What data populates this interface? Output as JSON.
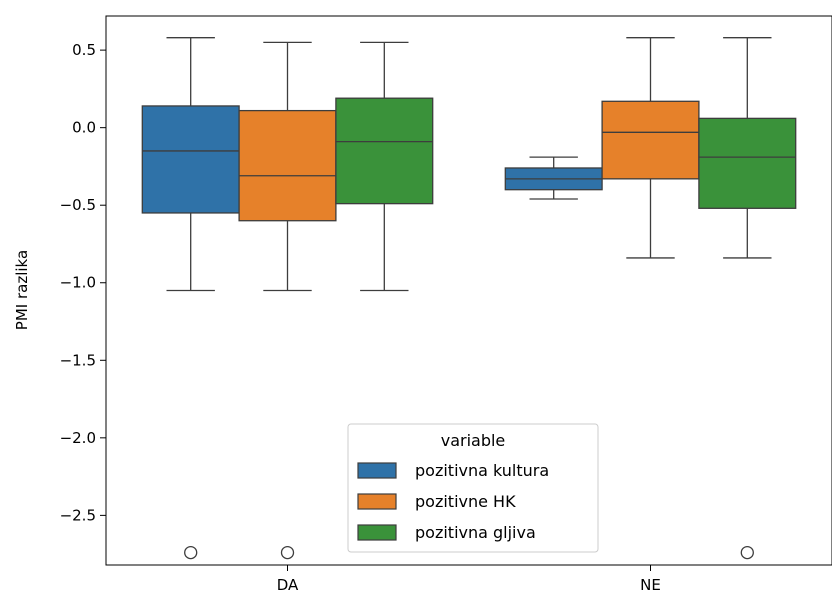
{
  "chart_data": {
    "type": "box",
    "xlabel": "",
    "ylabel": "PMI razlika",
    "categories": [
      "DA",
      "NE"
    ],
    "ylim": [
      -2.82,
      0.72
    ],
    "yticks": [
      0.5,
      0.0,
      -0.5,
      -1.0,
      -1.5,
      -2.0,
      -2.5
    ],
    "ytick_labels": [
      "0.5",
      "0.0",
      "−0.5",
      "−1.0",
      "−1.5",
      "−2.0",
      "−2.5"
    ],
    "grid": false,
    "legend": {
      "title": "variable",
      "position": "bottom-center"
    },
    "series": [
      {
        "name": "pozitivna kultura",
        "color": "#2f72a8",
        "boxes": [
          {
            "category": "DA",
            "whisker_low": -1.05,
            "q1": -0.55,
            "median": -0.15,
            "q3": 0.14,
            "whisker_high": 0.58,
            "outliers": [
              -2.74
            ]
          },
          {
            "category": "NE",
            "whisker_low": -0.46,
            "q1": -0.4,
            "median": -0.33,
            "q3": -0.26,
            "whisker_high": -0.19,
            "outliers": []
          }
        ]
      },
      {
        "name": "pozitivne HK",
        "color": "#e6812a",
        "boxes": [
          {
            "category": "DA",
            "whisker_low": -1.05,
            "q1": -0.6,
            "median": -0.31,
            "q3": 0.11,
            "whisker_high": 0.55,
            "outliers": [
              -2.74
            ]
          },
          {
            "category": "NE",
            "whisker_low": -0.84,
            "q1": -0.33,
            "median": -0.03,
            "q3": 0.17,
            "whisker_high": 0.58,
            "outliers": []
          }
        ]
      },
      {
        "name": "pozitivna gljiva",
        "color": "#3a923a",
        "boxes": [
          {
            "category": "DA",
            "whisker_low": -1.05,
            "q1": -0.49,
            "median": -0.09,
            "q3": 0.19,
            "whisker_high": 0.55,
            "outliers": []
          },
          {
            "category": "NE",
            "whisker_low": -0.84,
            "q1": -0.52,
            "median": -0.19,
            "q3": 0.06,
            "whisker_high": 0.58,
            "outliers": [
              -2.74
            ]
          }
        ]
      }
    ]
  }
}
